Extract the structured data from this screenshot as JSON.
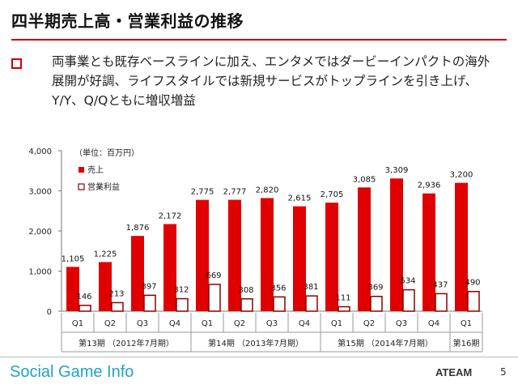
{
  "slide": {
    "title": "四半期売上高・営業利益の推移",
    "bullet": "両事業とも既存ベースラインに加え、エンタメではダービーインパクトの海外展開が好調、ライフスタイルでは新規サービスがトップラインを引き上げ、Y/Y、Q/Qともに増収増益",
    "unit_note": "（単位：百万円）",
    "page_number": "5",
    "footer_logo": "Social Game Info",
    "footer_company": "ATEAM"
  },
  "colors": {
    "accent": "#e00000",
    "bar_outline": "#8b0000"
  },
  "chart_data": {
    "type": "bar",
    "categories": [
      "Q1",
      "Q2",
      "Q3",
      "Q4",
      "Q1",
      "Q2",
      "Q3",
      "Q4",
      "Q1",
      "Q2",
      "Q3",
      "Q4",
      "Q1"
    ],
    "groups": [
      {
        "label": "第13期 （2012年7月期）",
        "count": 4
      },
      {
        "label": "第14期 （2013年7月期）",
        "count": 4
      },
      {
        "label": "第15期 （2014年7月期）",
        "count": 4
      },
      {
        "label": "第16期",
        "count": 1
      }
    ],
    "series": [
      {
        "name": "売上",
        "values": [
          1105,
          1225,
          1876,
          2172,
          2775,
          2777,
          2820,
          2615,
          2705,
          3085,
          3309,
          2936,
          3200
        ],
        "labels": [
          "1,105",
          "1,225",
          "1,876",
          "2,172",
          "2,775",
          "2,777",
          "2,820",
          "2,615",
          "2,705",
          "3,085",
          "3,309",
          "2,936",
          "3,200"
        ]
      },
      {
        "name": "営業利益",
        "values": [
          146,
          213,
          397,
          312,
          669,
          308,
          356,
          381,
          111,
          369,
          534,
          437,
          490
        ],
        "labels": [
          "146",
          "213",
          "397",
          "312",
          "669",
          "308",
          "356",
          "381",
          "111",
          "369",
          "534",
          "437",
          "490"
        ]
      }
    ],
    "ylim": [
      0,
      4000
    ],
    "yticks": [
      0,
      1000,
      2000,
      3000,
      4000
    ],
    "ytick_labels": [
      "0",
      "1,000",
      "2,000",
      "3,000",
      "4,000"
    ],
    "legend_position": "top-left"
  }
}
